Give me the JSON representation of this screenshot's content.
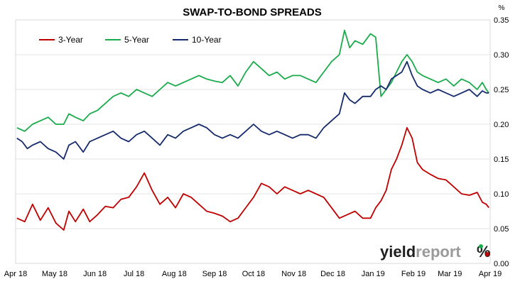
{
  "chart_data": {
    "type": "line",
    "title": "SWAP-TO-BOND SPREADS",
    "yunit": "%",
    "ylim": [
      0,
      0.35
    ],
    "yticks": [
      "0.00",
      "0.05",
      "0.10",
      "0.15",
      "0.20",
      "0.25",
      "0.30",
      "0.35"
    ],
    "xlim": [
      "2018-04-01",
      "2019-04-01"
    ],
    "xticks": [
      "Apr 18",
      "May 18",
      "Jun 18",
      "Jul 18",
      "Aug 18",
      "Sep 18",
      "Oct 18",
      "Nov 18",
      "Dec 18",
      "Jan 19",
      "Feb 19",
      "Mar 19",
      "Apr 19"
    ],
    "xtick_dates": [
      "2018-04-01",
      "2018-05-01",
      "2018-06-01",
      "2018-07-01",
      "2018-08-01",
      "2018-09-01",
      "2018-10-01",
      "2018-11-01",
      "2018-12-01",
      "2019-01-01",
      "2019-02-01",
      "2019-03-01",
      "2019-04-01"
    ],
    "legend_position": "top-left",
    "grid": "horizontal",
    "series": [
      {
        "name": "3-Year",
        "color": "#c00000",
        "points": [
          [
            "2018-04-02",
            0.065
          ],
          [
            "2018-04-08",
            0.06
          ],
          [
            "2018-04-14",
            0.085
          ],
          [
            "2018-04-20",
            0.062
          ],
          [
            "2018-04-26",
            0.08
          ],
          [
            "2018-05-02",
            0.058
          ],
          [
            "2018-05-08",
            0.048
          ],
          [
            "2018-05-12",
            0.075
          ],
          [
            "2018-05-17",
            0.06
          ],
          [
            "2018-05-23",
            0.078
          ],
          [
            "2018-05-28",
            0.06
          ],
          [
            "2018-06-03",
            0.07
          ],
          [
            "2018-06-09",
            0.082
          ],
          [
            "2018-06-15",
            0.08
          ],
          [
            "2018-06-21",
            0.092
          ],
          [
            "2018-06-27",
            0.095
          ],
          [
            "2018-07-03",
            0.11
          ],
          [
            "2018-07-09",
            0.13
          ],
          [
            "2018-07-15",
            0.105
          ],
          [
            "2018-07-21",
            0.085
          ],
          [
            "2018-07-27",
            0.095
          ],
          [
            "2018-08-02",
            0.08
          ],
          [
            "2018-08-08",
            0.1
          ],
          [
            "2018-08-14",
            0.095
          ],
          [
            "2018-08-20",
            0.085
          ],
          [
            "2018-08-26",
            0.075
          ],
          [
            "2018-09-01",
            0.072
          ],
          [
            "2018-09-07",
            0.068
          ],
          [
            "2018-09-13",
            0.06
          ],
          [
            "2018-09-19",
            0.065
          ],
          [
            "2018-09-25",
            0.08
          ],
          [
            "2018-10-01",
            0.095
          ],
          [
            "2018-10-07",
            0.115
          ],
          [
            "2018-10-13",
            0.11
          ],
          [
            "2018-10-19",
            0.1
          ],
          [
            "2018-10-25",
            0.11
          ],
          [
            "2018-10-31",
            0.105
          ],
          [
            "2018-11-06",
            0.1
          ],
          [
            "2018-11-12",
            0.105
          ],
          [
            "2018-11-18",
            0.1
          ],
          [
            "2018-11-24",
            0.095
          ],
          [
            "2018-11-30",
            0.08
          ],
          [
            "2018-12-06",
            0.065
          ],
          [
            "2018-12-12",
            0.07
          ],
          [
            "2018-12-18",
            0.075
          ],
          [
            "2018-12-24",
            0.065
          ],
          [
            "2018-12-30",
            0.065
          ],
          [
            "2019-01-03",
            0.08
          ],
          [
            "2019-01-07",
            0.09
          ],
          [
            "2019-01-11",
            0.105
          ],
          [
            "2019-01-15",
            0.135
          ],
          [
            "2019-01-19",
            0.15
          ],
          [
            "2019-01-23",
            0.17
          ],
          [
            "2019-01-27",
            0.195
          ],
          [
            "2019-01-31",
            0.18
          ],
          [
            "2019-02-04",
            0.145
          ],
          [
            "2019-02-08",
            0.135
          ],
          [
            "2019-02-14",
            0.128
          ],
          [
            "2019-02-20",
            0.122
          ],
          [
            "2019-02-26",
            0.12
          ],
          [
            "2019-03-04",
            0.11
          ],
          [
            "2019-03-10",
            0.1
          ],
          [
            "2019-03-16",
            0.098
          ],
          [
            "2019-03-22",
            0.102
          ],
          [
            "2019-03-26",
            0.088
          ],
          [
            "2019-03-29",
            0.085
          ],
          [
            "2019-03-31",
            0.08
          ]
        ]
      },
      {
        "name": "5-Year",
        "color": "#1aab4b",
        "points": [
          [
            "2018-04-02",
            0.195
          ],
          [
            "2018-04-08",
            0.19
          ],
          [
            "2018-04-14",
            0.2
          ],
          [
            "2018-04-20",
            0.205
          ],
          [
            "2018-04-26",
            0.21
          ],
          [
            "2018-05-02",
            0.2
          ],
          [
            "2018-05-08",
            0.2
          ],
          [
            "2018-05-12",
            0.215
          ],
          [
            "2018-05-17",
            0.21
          ],
          [
            "2018-05-23",
            0.205
          ],
          [
            "2018-05-28",
            0.215
          ],
          [
            "2018-06-03",
            0.22
          ],
          [
            "2018-06-09",
            0.23
          ],
          [
            "2018-06-15",
            0.24
          ],
          [
            "2018-06-21",
            0.245
          ],
          [
            "2018-06-27",
            0.24
          ],
          [
            "2018-07-03",
            0.25
          ],
          [
            "2018-07-09",
            0.245
          ],
          [
            "2018-07-15",
            0.24
          ],
          [
            "2018-07-21",
            0.25
          ],
          [
            "2018-07-27",
            0.26
          ],
          [
            "2018-08-02",
            0.255
          ],
          [
            "2018-08-08",
            0.26
          ],
          [
            "2018-08-14",
            0.265
          ],
          [
            "2018-08-20",
            0.27
          ],
          [
            "2018-08-26",
            0.265
          ],
          [
            "2018-09-01",
            0.262
          ],
          [
            "2018-09-07",
            0.26
          ],
          [
            "2018-09-13",
            0.27
          ],
          [
            "2018-09-19",
            0.255
          ],
          [
            "2018-09-25",
            0.275
          ],
          [
            "2018-10-01",
            0.29
          ],
          [
            "2018-10-07",
            0.28
          ],
          [
            "2018-10-13",
            0.27
          ],
          [
            "2018-10-19",
            0.275
          ],
          [
            "2018-10-25",
            0.265
          ],
          [
            "2018-10-31",
            0.27
          ],
          [
            "2018-11-06",
            0.27
          ],
          [
            "2018-11-12",
            0.265
          ],
          [
            "2018-11-18",
            0.26
          ],
          [
            "2018-11-24",
            0.275
          ],
          [
            "2018-11-30",
            0.29
          ],
          [
            "2018-12-06",
            0.3
          ],
          [
            "2018-12-10",
            0.335
          ],
          [
            "2018-12-14",
            0.31
          ],
          [
            "2018-12-18",
            0.32
          ],
          [
            "2018-12-24",
            0.315
          ],
          [
            "2018-12-30",
            0.33
          ],
          [
            "2019-01-03",
            0.325
          ],
          [
            "2019-01-07",
            0.24
          ],
          [
            "2019-01-11",
            0.25
          ],
          [
            "2019-01-15",
            0.26
          ],
          [
            "2019-01-19",
            0.275
          ],
          [
            "2019-01-23",
            0.29
          ],
          [
            "2019-01-27",
            0.3
          ],
          [
            "2019-01-31",
            0.29
          ],
          [
            "2019-02-04",
            0.275
          ],
          [
            "2019-02-08",
            0.27
          ],
          [
            "2019-02-14",
            0.265
          ],
          [
            "2019-02-20",
            0.26
          ],
          [
            "2019-02-26",
            0.265
          ],
          [
            "2019-03-04",
            0.255
          ],
          [
            "2019-03-10",
            0.265
          ],
          [
            "2019-03-16",
            0.26
          ],
          [
            "2019-03-22",
            0.25
          ],
          [
            "2019-03-26",
            0.26
          ],
          [
            "2019-03-29",
            0.25
          ],
          [
            "2019-03-31",
            0.245
          ]
        ]
      },
      {
        "name": "10-Year",
        "color": "#152b6b",
        "points": [
          [
            "2018-04-02",
            0.18
          ],
          [
            "2018-04-06",
            0.175
          ],
          [
            "2018-04-10",
            0.165
          ],
          [
            "2018-04-14",
            0.17
          ],
          [
            "2018-04-20",
            0.175
          ],
          [
            "2018-04-26",
            0.165
          ],
          [
            "2018-05-02",
            0.16
          ],
          [
            "2018-05-08",
            0.15
          ],
          [
            "2018-05-12",
            0.17
          ],
          [
            "2018-05-17",
            0.175
          ],
          [
            "2018-05-23",
            0.16
          ],
          [
            "2018-05-28",
            0.175
          ],
          [
            "2018-06-03",
            0.18
          ],
          [
            "2018-06-09",
            0.185
          ],
          [
            "2018-06-15",
            0.19
          ],
          [
            "2018-06-21",
            0.18
          ],
          [
            "2018-06-27",
            0.175
          ],
          [
            "2018-07-03",
            0.185
          ],
          [
            "2018-07-09",
            0.19
          ],
          [
            "2018-07-15",
            0.18
          ],
          [
            "2018-07-21",
            0.17
          ],
          [
            "2018-07-27",
            0.185
          ],
          [
            "2018-08-02",
            0.18
          ],
          [
            "2018-08-08",
            0.19
          ],
          [
            "2018-08-14",
            0.195
          ],
          [
            "2018-08-20",
            0.2
          ],
          [
            "2018-08-26",
            0.195
          ],
          [
            "2018-09-01",
            0.185
          ],
          [
            "2018-09-07",
            0.18
          ],
          [
            "2018-09-13",
            0.185
          ],
          [
            "2018-09-19",
            0.18
          ],
          [
            "2018-09-25",
            0.19
          ],
          [
            "2018-10-01",
            0.2
          ],
          [
            "2018-10-07",
            0.19
          ],
          [
            "2018-10-13",
            0.185
          ],
          [
            "2018-10-19",
            0.19
          ],
          [
            "2018-10-25",
            0.185
          ],
          [
            "2018-10-31",
            0.18
          ],
          [
            "2018-11-06",
            0.185
          ],
          [
            "2018-11-12",
            0.185
          ],
          [
            "2018-11-18",
            0.18
          ],
          [
            "2018-11-24",
            0.195
          ],
          [
            "2018-11-30",
            0.205
          ],
          [
            "2018-12-06",
            0.215
          ],
          [
            "2018-12-10",
            0.245
          ],
          [
            "2018-12-14",
            0.235
          ],
          [
            "2018-12-18",
            0.23
          ],
          [
            "2018-12-24",
            0.24
          ],
          [
            "2018-12-30",
            0.24
          ],
          [
            "2019-01-03",
            0.25
          ],
          [
            "2019-01-07",
            0.255
          ],
          [
            "2019-01-11",
            0.25
          ],
          [
            "2019-01-15",
            0.265
          ],
          [
            "2019-01-19",
            0.27
          ],
          [
            "2019-01-23",
            0.275
          ],
          [
            "2019-01-27",
            0.29
          ],
          [
            "2019-01-31",
            0.27
          ],
          [
            "2019-02-04",
            0.255
          ],
          [
            "2019-02-08",
            0.25
          ],
          [
            "2019-02-14",
            0.245
          ],
          [
            "2019-02-20",
            0.25
          ],
          [
            "2019-02-26",
            0.245
          ],
          [
            "2019-03-04",
            0.24
          ],
          [
            "2019-03-10",
            0.245
          ],
          [
            "2019-03-16",
            0.25
          ],
          [
            "2019-03-22",
            0.24
          ],
          [
            "2019-03-26",
            0.248
          ],
          [
            "2019-03-29",
            0.245
          ],
          [
            "2019-03-31",
            0.245
          ]
        ]
      }
    ]
  },
  "brand": {
    "part1": "yield",
    "part2": "report",
    "part3": "%",
    "color1": "#1f1f1f",
    "color2": "#9a9a9a",
    "color3": "#1aab4b",
    "color4": "#c00000"
  }
}
